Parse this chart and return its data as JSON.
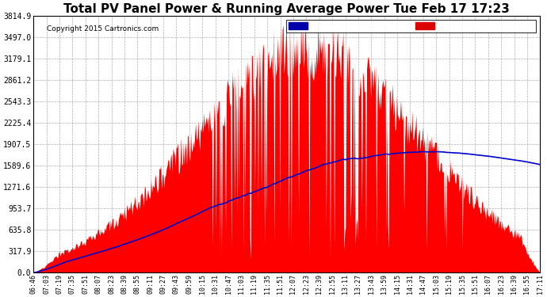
{
  "title": "Total PV Panel Power & Running Average Power Tue Feb 17 17:23",
  "copyright": "Copyright 2015 Cartronics.com",
  "ylabel_ticks": [
    0.0,
    317.9,
    635.8,
    953.7,
    1271.6,
    1589.6,
    1907.5,
    2225.4,
    2543.3,
    2861.2,
    3179.1,
    3497.0,
    3814.9
  ],
  "x_labels": [
    "06:46",
    "07:03",
    "07:19",
    "07:35",
    "07:51",
    "08:07",
    "08:23",
    "08:39",
    "08:55",
    "09:11",
    "09:27",
    "09:43",
    "09:59",
    "10:15",
    "10:31",
    "10:47",
    "11:03",
    "11:19",
    "11:35",
    "11:51",
    "12:07",
    "12:23",
    "12:39",
    "12:55",
    "13:11",
    "13:27",
    "13:43",
    "13:59",
    "14:15",
    "14:31",
    "14:47",
    "15:03",
    "15:19",
    "15:35",
    "15:51",
    "16:07",
    "16:23",
    "16:39",
    "16:55",
    "17:11"
  ],
  "pv_color": "#ff0000",
  "avg_color": "#0000cc",
  "background_color": "#ffffff",
  "grid_color": "#999999",
  "title_fontsize": 11,
  "legend_avg_bg": "#0000aa",
  "legend_pv_bg": "#dd0000",
  "ymax": 3814.9
}
